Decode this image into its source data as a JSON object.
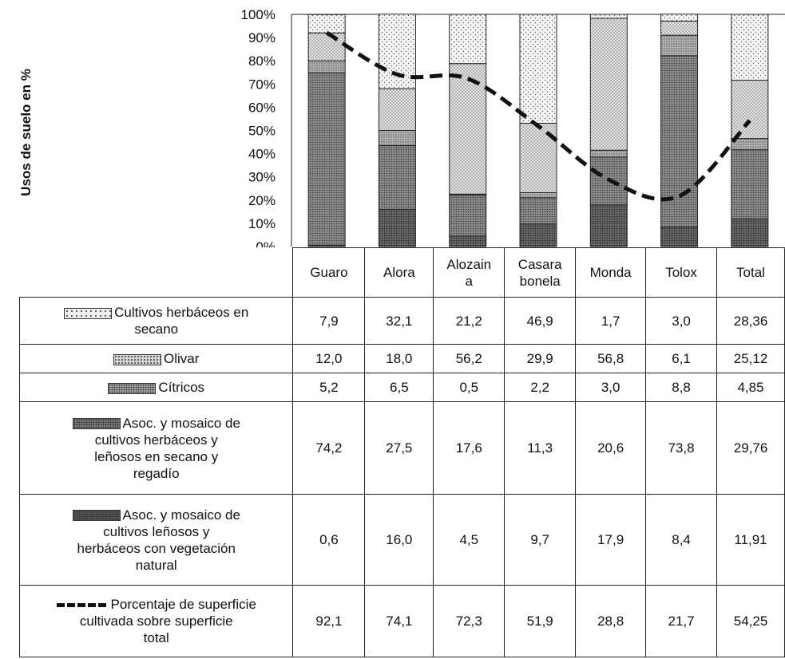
{
  "chart_data": {
    "type": "bar",
    "stacked": true,
    "ylabel": "Usos de suelo en %",
    "ylim": [
      0,
      100
    ],
    "yticks": [
      "0%",
      "10%",
      "20%",
      "30%",
      "40%",
      "50%",
      "60%",
      "70%",
      "80%",
      "90%",
      "100%"
    ],
    "categories": [
      "Guaro",
      "Alora",
      "Alozain a",
      "Casara bonela",
      "Monda",
      "Tolox",
      "Total"
    ],
    "category_lines": [
      [
        "Guaro"
      ],
      [
        "Alora"
      ],
      [
        "Alozain",
        "a"
      ],
      [
        "Casara",
        "bonela"
      ],
      [
        "Monda"
      ],
      [
        "Tolox"
      ],
      [
        "Total"
      ]
    ],
    "series": [
      {
        "name": "Asoc. y mosaico de cultivos leñosos y herbáceos con vegetación natural",
        "values": [
          0.6,
          16.0,
          4.5,
          9.7,
          17.9,
          8.4,
          11.91
        ],
        "labels": [
          "0,6",
          "16,0",
          "4,5",
          "9,7",
          "17,9",
          "8,4",
          "11,91"
        ],
        "pattern": "dense-dark",
        "color": "#555555"
      },
      {
        "name": "Asoc. y mosaico de cultivos herbáceos y leñosos en secano y regadío",
        "values": [
          74.2,
          27.5,
          17.6,
          11.3,
          20.6,
          73.8,
          29.76
        ],
        "labels": [
          "74,2",
          "27,5",
          "17,6",
          "11,3",
          "20,6",
          "73,8",
          "29,76"
        ],
        "pattern": "dense-medium",
        "color": "#7a7a7a"
      },
      {
        "name": "Cítricos",
        "values": [
          5.2,
          6.5,
          0.5,
          2.2,
          3.0,
          8.8,
          4.85
        ],
        "labels": [
          "5,2",
          "6,5",
          "0,5",
          "2,2",
          "3,0",
          "8,8",
          "4,85"
        ],
        "pattern": "medium",
        "color": "#a6a6a6"
      },
      {
        "name": "Olivar",
        "values": [
          12.0,
          18.0,
          56.2,
          29.9,
          56.8,
          6.1,
          25.12
        ],
        "labels": [
          "12,0",
          "18,0",
          "56,2",
          "29,9",
          "56,8",
          "6,1",
          "25,12"
        ],
        "pattern": "light",
        "color": "#d6d6d6"
      },
      {
        "name": "Cultivos herbáceos en secano",
        "values": [
          7.9,
          32.1,
          21.2,
          46.9,
          1.7,
          3.0,
          28.36
        ],
        "labels": [
          "7,9",
          "32,1",
          "21,2",
          "46,9",
          "1,7",
          "3,0",
          "28,36"
        ],
        "pattern": "sparse",
        "color": "#eeeeee"
      }
    ],
    "line": {
      "name": "Porcentaje de superficie cultivada sobre superficie total",
      "values": [
        92.1,
        74.1,
        72.3,
        51.9,
        28.8,
        21.7,
        54.25
      ],
      "labels": [
        "92,1",
        "74,1",
        "72,3",
        "51,9",
        "28,8",
        "21,7",
        "54,25"
      ],
      "style": "dashed"
    },
    "legend_placement": "table-rows-below"
  },
  "table_rows": [
    {
      "key": "sparse",
      "lines": [
        "Cultivos herbáceos en",
        "secano"
      ]
    },
    {
      "key": "light",
      "lines": [
        "Olivar"
      ]
    },
    {
      "key": "medium",
      "lines": [
        "Cítricos"
      ]
    },
    {
      "key": "dense-medium",
      "lines": [
        "Asoc. y mosaico de",
        "cultivos herbáceos y",
        "leñosos en secano y",
        "regadío"
      ]
    },
    {
      "key": "dense-dark",
      "lines": [
        "Asoc. y mosaico de",
        "cultivos leñosos y",
        "herbáceos con vegetación",
        "natural"
      ]
    },
    {
      "key": "line",
      "lines": [
        "Porcentaje de superficie",
        "cultivada sobre superficie",
        "total"
      ]
    }
  ]
}
